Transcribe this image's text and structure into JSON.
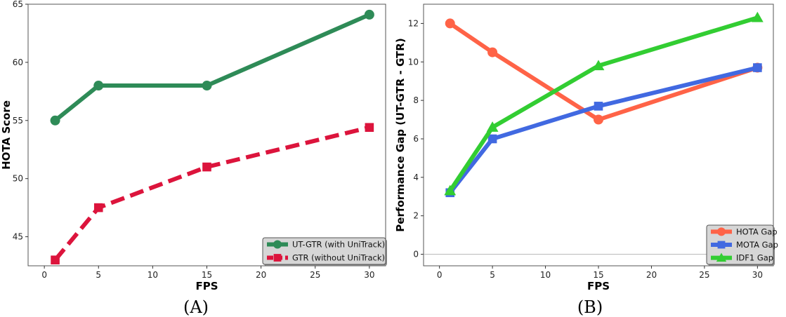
{
  "chart_data": [
    {
      "type": "line",
      "caption": "(A)",
      "xlabel": "FPS",
      "ylabel": "HOTA Score",
      "xlim": [
        -1.5,
        31.5
      ],
      "ylim": [
        42.5,
        65
      ],
      "xticks": [
        0,
        5,
        10,
        15,
        20,
        25,
        30
      ],
      "yticks": [
        45,
        50,
        55,
        60,
        65
      ],
      "grid": false,
      "legend": "bottom-right",
      "series": [
        {
          "name": "UT-GTR (with UniTrack)",
          "x": [
            1,
            5,
            15,
            30
          ],
          "y": [
            55,
            58,
            58,
            64.1
          ],
          "color": "#2e8b57",
          "marker": "circle",
          "dash": "solid"
        },
        {
          "name": "GTR (without UniTrack)",
          "x": [
            1,
            5,
            15,
            30
          ],
          "y": [
            43,
            47.5,
            51,
            54.4
          ],
          "color": "#dc143c",
          "marker": "square",
          "dash": "dashed"
        }
      ]
    },
    {
      "type": "line",
      "caption": "(B)",
      "xlabel": "FPS",
      "ylabel": "Performance Gap (UT-GTR - GTR)",
      "xlim": [
        -1.5,
        31.5
      ],
      "ylim": [
        -0.6,
        13.0
      ],
      "xticks": [
        0,
        5,
        10,
        15,
        20,
        25,
        30
      ],
      "yticks": [
        0,
        2,
        4,
        6,
        8,
        10,
        12
      ],
      "grid": false,
      "zero_line": true,
      "legend": "bottom-right",
      "series": [
        {
          "name": "HOTA Gap",
          "x": [
            1,
            5,
            15,
            30
          ],
          "y": [
            12,
            10.5,
            7,
            9.7
          ],
          "color": "#ff6347",
          "marker": "circle",
          "dash": "solid"
        },
        {
          "name": "MOTA Gap",
          "x": [
            1,
            5,
            15,
            30
          ],
          "y": [
            3.2,
            6,
            7.7,
            9.7
          ],
          "color": "#4169e1",
          "marker": "square",
          "dash": "solid"
        },
        {
          "name": "IDF1 Gap",
          "x": [
            1,
            5,
            15,
            30
          ],
          "y": [
            3.3,
            6.6,
            9.8,
            12.3
          ],
          "color": "#32cd32",
          "marker": "triangle",
          "dash": "solid"
        }
      ]
    }
  ]
}
